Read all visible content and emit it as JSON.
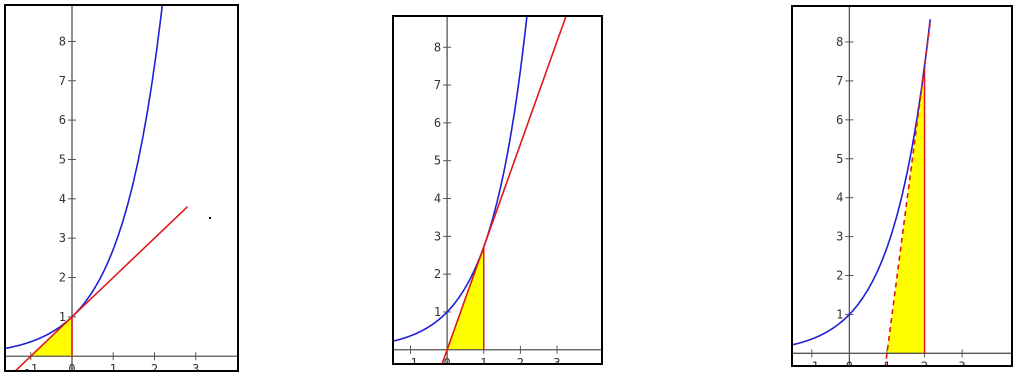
{
  "colors": {
    "curve": "#1f1fd8",
    "tangent": "#e01818",
    "fill": "#ffff00",
    "axis": "#555555",
    "frame": "#000000"
  },
  "chart_data": [
    {
      "type": "line",
      "xlim": [
        -1.6,
        4.0
      ],
      "ylim": [
        -0.35,
        8.9
      ],
      "xticks": [
        -1,
        0,
        1,
        2,
        3
      ],
      "yticks": [
        1,
        2,
        3,
        4,
        5,
        6,
        7,
        8
      ],
      "tick_labels_x": [
        "-1",
        "0",
        "1",
        "2",
        "3"
      ],
      "tick_labels_y": [
        "1",
        "2",
        "3",
        "4",
        "5",
        "6",
        "7",
        "8"
      ],
      "curve": {
        "function": "exp",
        "x_range": [
          -1.6,
          2.2
        ]
      },
      "tangent": {
        "x0": 0,
        "x_range": [
          -1.6,
          2.8
        ],
        "slope": 1,
        "intercept": 1
      },
      "shaded_triangle": [
        [
          -1,
          0
        ],
        [
          0,
          0
        ],
        [
          0,
          1
        ]
      ],
      "vertical_marker_x": 0,
      "grid": false
    },
    {
      "type": "line",
      "xlim": [
        -1.45,
        4.2
      ],
      "ylim": [
        -0.35,
        8.8
      ],
      "xticks": [
        -1,
        0,
        1,
        2,
        3
      ],
      "yticks": [
        1,
        2,
        3,
        4,
        5,
        6,
        7,
        8
      ],
      "tick_labels_x": [
        "-1",
        "0",
        "1",
        "2",
        "3"
      ],
      "tick_labels_y": [
        "1",
        "2",
        "3",
        "4",
        "5",
        "6",
        "7",
        "8"
      ],
      "curve": {
        "function": "exp",
        "x_range": [
          -1.45,
          2.2
        ]
      },
      "tangent": {
        "x0": 1,
        "x_range": [
          -0.2,
          3.3
        ],
        "slope": 2.718,
        "intercept": 0
      },
      "shaded_triangle": [
        [
          0,
          0
        ],
        [
          1,
          0
        ],
        [
          1,
          2.718
        ]
      ],
      "vertical_marker_x": 1,
      "grid": false
    },
    {
      "type": "line",
      "xlim": [
        -1.5,
        4.3
      ],
      "ylim": [
        -0.3,
        8.9
      ],
      "xticks": [
        -1,
        0,
        1,
        2,
        3
      ],
      "yticks": [
        1,
        2,
        3,
        4,
        5,
        6,
        7,
        8
      ],
      "tick_labels_x": [
        "-1",
        "0",
        "1",
        "2",
        "3"
      ],
      "tick_labels_y": [
        "1",
        "2",
        "3",
        "4",
        "5",
        "6",
        "7",
        "8"
      ],
      "curve": {
        "function": "exp",
        "x_range": [
          -1.5,
          2.15
        ]
      },
      "tangent": {
        "x0": 2,
        "x_range": [
          0.95,
          2.15
        ],
        "slope": 7.389,
        "intercept": -7.389,
        "style": "dashed"
      },
      "shaded_triangle": [
        [
          1,
          0
        ],
        [
          2,
          0
        ],
        [
          2,
          7.389
        ]
      ],
      "vertical_marker_x": 2,
      "grid": false
    }
  ]
}
